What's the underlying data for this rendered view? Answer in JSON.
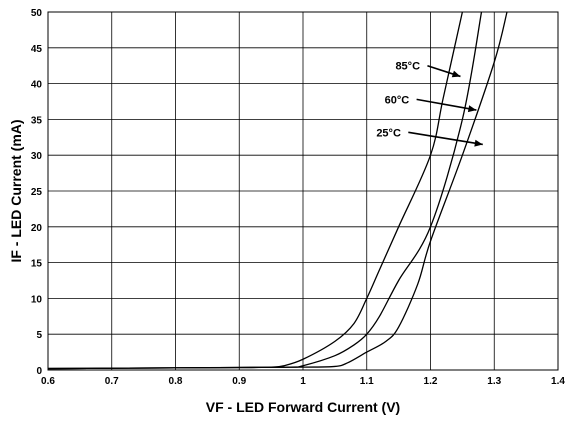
{
  "chart_data": {
    "type": "line",
    "title": "",
    "xlabel": "VF - LED Forward Current (V)",
    "ylabel": "IF - LED Current (mA)",
    "xlim": [
      0.6,
      1.4
    ],
    "ylim": [
      0,
      50
    ],
    "xticks": [
      "0.6",
      "0.7",
      "0.8",
      "0.9",
      "1",
      "1.1",
      "1.2",
      "1.3",
      "1.4"
    ],
    "yticks": [
      "0",
      "5",
      "10",
      "15",
      "20",
      "25",
      "30",
      "35",
      "40",
      "45",
      "50"
    ],
    "grid": true,
    "series": [
      {
        "name": "85°C",
        "x": [
          0.6,
          0.7,
          0.8,
          0.9,
          0.95,
          0.97,
          1.0,
          1.05,
          1.08,
          1.1,
          1.12,
          1.15,
          1.2,
          1.22,
          1.25
        ],
        "y": [
          0.2,
          0.25,
          0.3,
          0.35,
          0.4,
          0.6,
          1.5,
          4.0,
          6.5,
          10.0,
          14.0,
          20.0,
          30.0,
          38.0,
          50.0
        ]
      },
      {
        "name": "60°C",
        "x": [
          0.6,
          0.7,
          0.8,
          0.9,
          0.98,
          1.0,
          1.05,
          1.08,
          1.1,
          1.12,
          1.15,
          1.2,
          1.25,
          1.28
        ],
        "y": [
          0.2,
          0.25,
          0.3,
          0.35,
          0.4,
          0.6,
          2.0,
          3.5,
          5.0,
          7.5,
          12.5,
          20.0,
          35.0,
          50.0
        ]
      },
      {
        "name": "25°C",
        "x": [
          0.6,
          0.7,
          0.8,
          0.9,
          1.0,
          1.05,
          1.07,
          1.1,
          1.13,
          1.15,
          1.18,
          1.2,
          1.25,
          1.3,
          1.32
        ],
        "y": [
          0.2,
          0.25,
          0.3,
          0.35,
          0.4,
          0.5,
          1.0,
          2.5,
          4.0,
          6.0,
          12.0,
          18.0,
          30.0,
          43.0,
          50.0
        ]
      }
    ],
    "annotations": [
      {
        "text": "85°C",
        "series": "85°C",
        "label_x": 1.145,
        "label_y": 42.5,
        "arrow_to_x": 1.247,
        "arrow_to_y": 41.0
      },
      {
        "text": "60°C",
        "series": "60°C",
        "label_x": 1.128,
        "label_y": 37.8,
        "arrow_to_x": 1.272,
        "arrow_to_y": 36.3
      },
      {
        "text": "25°C",
        "series": "25°C",
        "label_x": 1.115,
        "label_y": 33.2,
        "arrow_to_x": 1.282,
        "arrow_to_y": 31.5
      }
    ]
  }
}
